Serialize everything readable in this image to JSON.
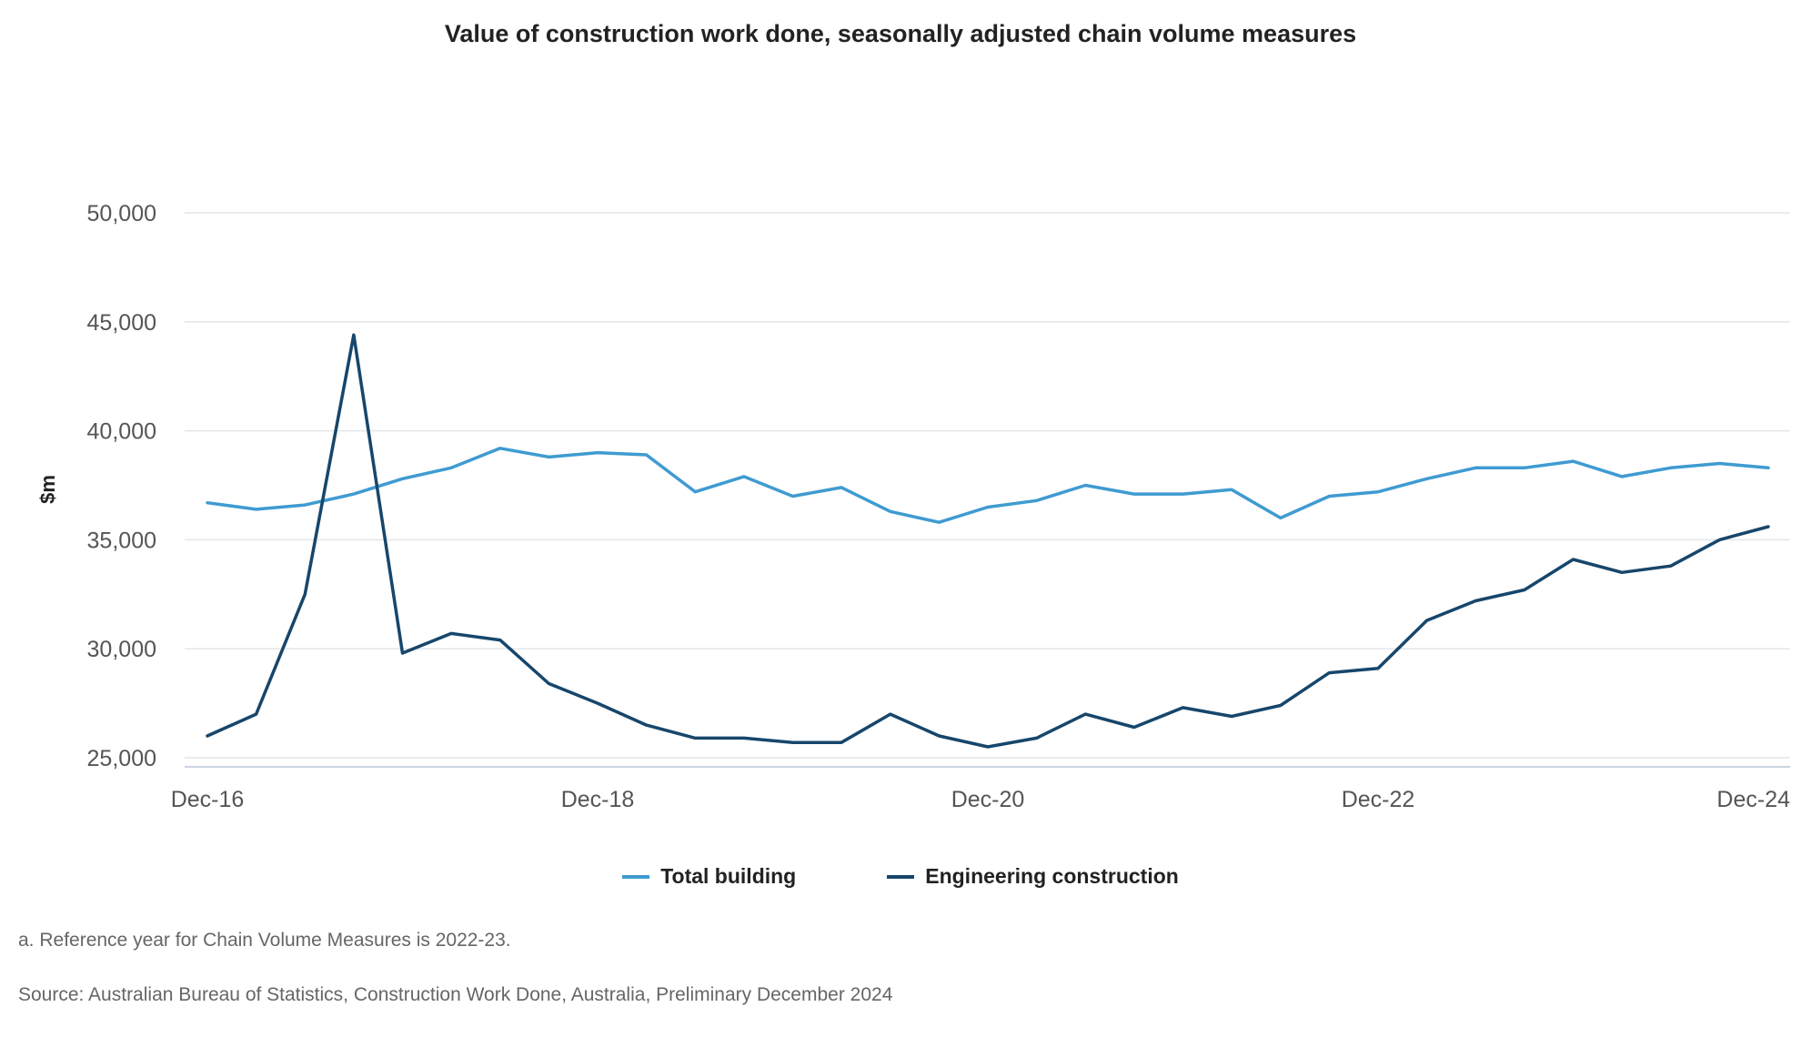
{
  "chart_data": {
    "type": "line",
    "title": "Value of construction work done, seasonally adjusted chain volume measures",
    "ylabel": "$m",
    "xlabel": "",
    "ylim": [
      25000,
      51000
    ],
    "yticks": [
      25000,
      30000,
      35000,
      40000,
      45000,
      50000
    ],
    "ytick_labels": [
      "25,000",
      "30,000",
      "35,000",
      "40,000",
      "45,000",
      "50,000"
    ],
    "xtick_labels": [
      {
        "index": 0,
        "label": "Dec-16"
      },
      {
        "index": 8,
        "label": "Dec-18"
      },
      {
        "index": 16,
        "label": "Dec-20"
      },
      {
        "index": 24,
        "label": "Dec-22"
      },
      {
        "index": 32,
        "label": "Dec-24"
      }
    ],
    "grid": true,
    "legend_position": "bottom",
    "series": [
      {
        "name": "Total building",
        "color": "#3f9bd1",
        "values": [
          36700,
          36400,
          36600,
          37100,
          37800,
          38300,
          39200,
          38800,
          39000,
          38900,
          37200,
          37900,
          37000,
          37400,
          36300,
          35800,
          36500,
          36800,
          37500,
          37100,
          37100,
          37300,
          36000,
          37000,
          37200,
          37800,
          38300,
          38300,
          38600,
          37900,
          38300,
          38500,
          38300
        ]
      },
      {
        "name": "Engineering construction",
        "color": "#17466b",
        "values": [
          26000,
          27000,
          32500,
          44400,
          29800,
          30700,
          30400,
          28400,
          27500,
          26500,
          25900,
          25900,
          25700,
          25700,
          27000,
          26000,
          25500,
          25900,
          27000,
          26400,
          27300,
          26900,
          27400,
          28900,
          29100,
          31300,
          32200,
          32700,
          34100,
          33500,
          33800,
          35000,
          35600
        ]
      }
    ]
  },
  "legend": {
    "items": [
      "Total building",
      "Engineering construction"
    ]
  },
  "footnote": "a. Reference year for Chain Volume Measures is 2022-23.",
  "source": "Source: Australian Bureau of Statistics, Construction Work Done, Australia, Preliminary December 2024"
}
